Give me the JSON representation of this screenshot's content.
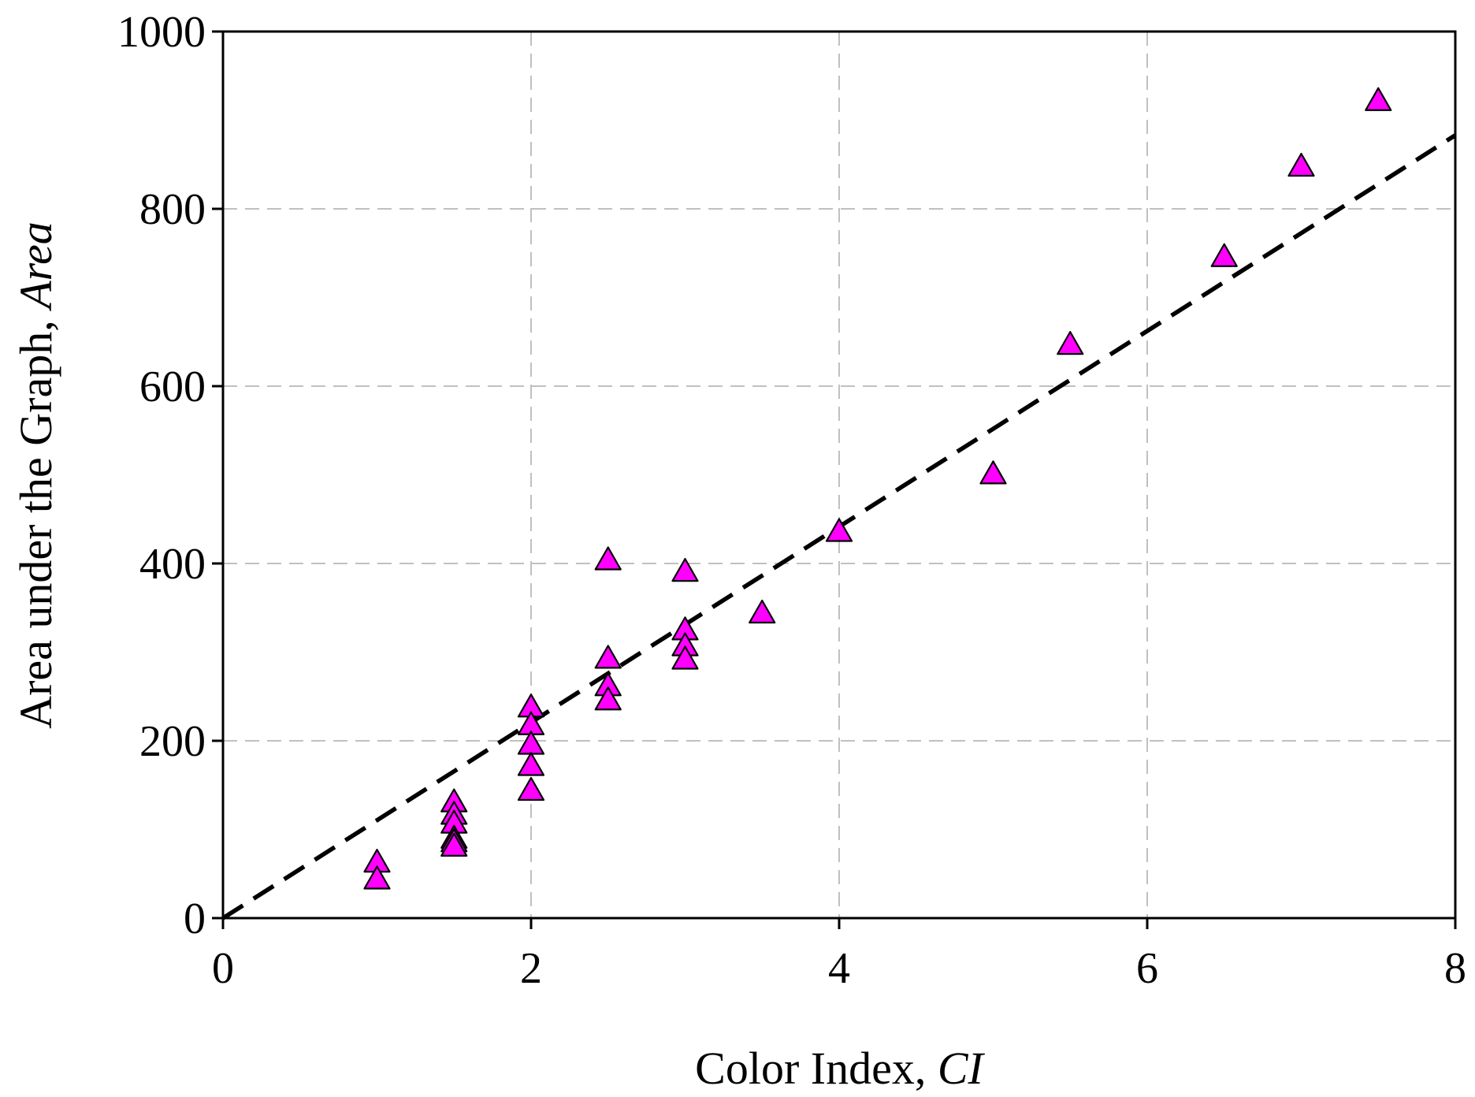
{
  "chart_data": {
    "type": "scatter",
    "xlabel": {
      "text": "Color Index, ",
      "italic": "CI"
    },
    "ylabel": {
      "text": "Area under the Graph, ",
      "italic": "Area"
    },
    "xlim": [
      0,
      8
    ],
    "ylim": [
      0,
      1000
    ],
    "xticks": [
      "0",
      "2",
      "4",
      "6",
      "8"
    ],
    "yticks": [
      "0",
      "200",
      "400",
      "600",
      "800",
      "1000"
    ],
    "grid": true,
    "legend": "none",
    "marker": {
      "shape": "triangle",
      "fill": "#ff00ff",
      "stroke": "#000000"
    },
    "series": [
      {
        "points": [
          [
            1,
            63
          ],
          [
            1,
            44
          ],
          [
            1.5,
            131
          ],
          [
            1.5,
            117
          ],
          [
            1.5,
            107
          ],
          [
            1.5,
            90
          ],
          [
            1.5,
            86
          ],
          [
            1.5,
            81
          ],
          [
            2,
            238
          ],
          [
            2,
            218
          ],
          [
            2,
            196
          ],
          [
            2,
            172
          ],
          [
            2,
            144
          ],
          [
            2.5,
            404
          ],
          [
            2.5,
            293
          ],
          [
            2.5,
            262
          ],
          [
            2.5,
            246
          ],
          [
            3,
            391
          ],
          [
            3,
            325
          ],
          [
            3,
            307
          ],
          [
            3,
            292
          ],
          [
            3.5,
            344
          ],
          [
            4,
            436
          ],
          [
            5,
            501
          ],
          [
            5.5,
            647
          ],
          [
            6.5,
            746
          ],
          [
            7,
            848
          ],
          [
            7.5,
            922
          ]
        ]
      }
    ],
    "trendline": {
      "style": "dashed",
      "color": "#000000",
      "x": [
        0,
        8
      ],
      "y": [
        0,
        883
      ]
    }
  }
}
